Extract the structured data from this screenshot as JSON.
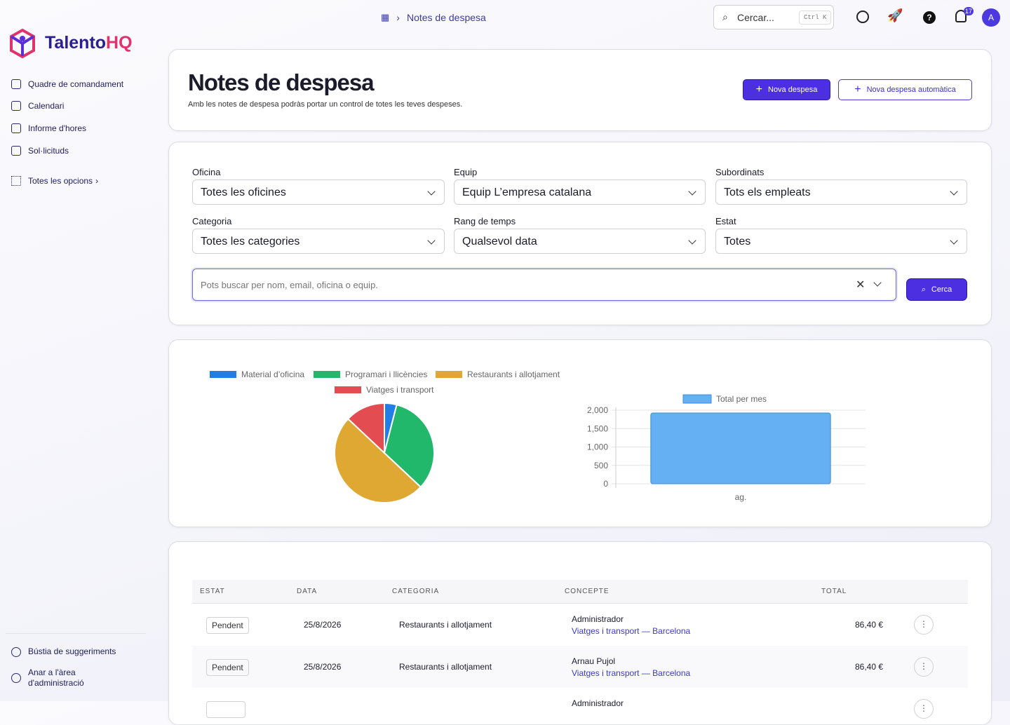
{
  "brand": {
    "name": "Talento",
    "accent": "HQ"
  },
  "breadcrumb": "Notes de despesa",
  "topbar": {
    "search": "Cercar...",
    "shortcut": "Ctrl K",
    "notifications": "17",
    "avatar": "A"
  },
  "nav": [
    "Quadre de comandament",
    "Calendari",
    "Informe d'hores",
    "Sol·licituds"
  ],
  "nav_more": "Totes les opcions",
  "footer_nav": [
    "Bústia de suggeriments",
    "Anar a l'àrea d'administració"
  ],
  "header": {
    "title": "Notes de despesa",
    "subtitle": "Amb les notes de despesa podràs portar un control de totes les teves despeses.",
    "buttons": [
      "Nova despesa",
      "Nova despesa automàtica"
    ]
  },
  "filters": [
    {
      "label": "Oficina",
      "value": "Totes les oficines"
    },
    {
      "label": "Equip",
      "value": "Equip L’empresa catalana"
    },
    {
      "label": "Subordinats",
      "value": "Tots els empleats"
    },
    {
      "label": "Categoria",
      "value": "Totes les categories"
    },
    {
      "label": "Rang de temps",
      "value": "Qualsevol data"
    },
    {
      "label": "Estat",
      "value": "Totes"
    }
  ],
  "search": {
    "placeholder": "Pots buscar per nom, email, oficina o equip.",
    "button": "Cerca"
  },
  "chart_data": [
    {
      "type": "pie",
      "categories": [
        "Material d’oficina",
        "Programari i llicències",
        "Restaurants i allotjament",
        "Viatges i transport"
      ],
      "values": [
        4,
        33,
        50,
        13
      ],
      "colors": [
        "#1f7fe6",
        "#21b86b",
        "#dea833",
        "#e34d51"
      ]
    },
    {
      "type": "bar",
      "categories": [
        "ag."
      ],
      "series": [
        {
          "name": "Total per mes",
          "color": "#64b0f2",
          "values": [
            1925
          ]
        }
      ],
      "ylim": [
        0,
        2000
      ],
      "yticks": [
        0,
        500,
        {
          "value": 1000,
          "label": "1,000"
        },
        {
          "value": 1500,
          "label": "1,500"
        },
        {
          "value": 2000,
          "label": "2,000"
        }
      ],
      "grid": true
    }
  ],
  "table": {
    "columns": [
      "ESTAT",
      "DATA",
      "CATEGORIA",
      "CONCEPTE",
      "TOTAL"
    ],
    "rows": [
      {
        "status": "Pendent",
        "date": "25/8/2026",
        "category": "Restaurants i allotjament",
        "name": "Administrador",
        "detail": "Viatges i transport — Barcelona",
        "total": "86,40 €"
      },
      {
        "status": "Pendent",
        "date": "25/8/2026",
        "category": "Restaurants i allotjament",
        "name": "Arnau Pujol",
        "detail": "Viatges i transport — Barcelona",
        "total": "86,40 €"
      },
      {
        "name": "Administrador"
      }
    ]
  }
}
